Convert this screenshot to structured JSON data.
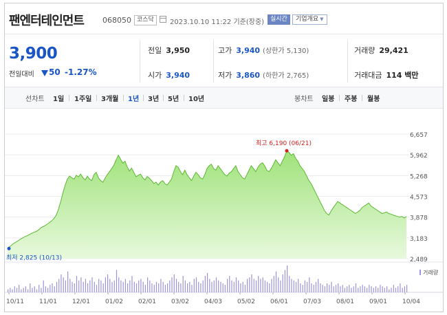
{
  "header": {
    "company_name": "팬엔터테인먼트",
    "stock_code": "068050",
    "market": "코스닥",
    "datetime": "2023.10.10 11:22",
    "status": "기준(장중)",
    "realtime_badge": "실시간",
    "company_info_button": "기업개요"
  },
  "quote": {
    "price": "3,900",
    "change_label": "전일대비",
    "change_value": "50",
    "change_percent": "-1.27%",
    "prev_close": {
      "label": "전일",
      "value": "3,950"
    },
    "open": {
      "label": "시가",
      "value": "3,940"
    },
    "high": {
      "label": "고가",
      "value": "3,940",
      "limit_label": "(상한가 5,130)"
    },
    "low": {
      "label": "저가",
      "value": "3,860",
      "limit_label": "(하한가 2,765)"
    },
    "volume": {
      "label": "거래량",
      "value": "29,421"
    },
    "trade_value": {
      "label": "거래대금",
      "value": "114 백만"
    }
  },
  "periods": {
    "line_chart_label": "선차트",
    "items": [
      "1일",
      "1주일",
      "3개월",
      "1년",
      "3년",
      "5년",
      "10년"
    ],
    "active": "1년",
    "candle_chart_label": "봉차트",
    "candle_items": [
      "일봉",
      "주봉",
      "월봉"
    ]
  },
  "colors": {
    "accent_blue": "#1a55c5",
    "annotation_red": "#d61f1f",
    "area_fill": "#9fe27a",
    "area_line": "#5cb933",
    "volume_bar": "#9b93d6"
  },
  "chart_data": {
    "type": "area",
    "y_ticks": [
      "6,657",
      "5,962",
      "5,268",
      "4,573",
      "3,878",
      "3,183",
      "2,489"
    ],
    "ylim": [
      2489,
      6657
    ],
    "x_tick_labels": [
      "10/11",
      "11/01",
      "12/01",
      "01/02",
      "02/01",
      "03/02",
      "04/03",
      "05/02",
      "06/01",
      "07/03",
      "08/01",
      "09/01",
      "10/04"
    ],
    "max_annotation": "최고 6,190 (06/21)",
    "min_annotation": "최저 2,825 (10/13)",
    "volume_legend": "거래량",
    "series": [
      {
        "values": [
          2825,
          2890,
          2950,
          3010,
          3050,
          3100,
          3150,
          3190,
          3230,
          3260,
          3300,
          3340,
          3370,
          3400,
          3450,
          3520,
          3560,
          3600,
          3650,
          3700,
          3760,
          3840,
          3950,
          4150,
          4400,
          4700,
          4950,
          5150,
          5250,
          5200,
          5150,
          5280,
          5230,
          5320,
          5200,
          5120,
          5250,
          5150,
          5100,
          5300,
          5380,
          5200,
          5100,
          5050,
          5180,
          5300,
          5400,
          5500,
          5620,
          5800,
          5950,
          5820,
          5680,
          5750,
          5560,
          5420,
          5520,
          5370,
          5230,
          5280,
          5320,
          5200,
          5120,
          5240,
          5180,
          5100,
          5000,
          5050,
          4950,
          5050,
          5100,
          5000,
          4950,
          5050,
          5150,
          5400,
          5600,
          5550,
          5400,
          5300,
          5450,
          5300,
          5200,
          5100,
          5250,
          5380,
          5300,
          5200,
          5150,
          5300,
          5500,
          5600,
          5650,
          5500,
          5450,
          5600,
          5500,
          5400,
          5300,
          5250,
          5350,
          5400,
          5500,
          5600,
          5400,
          5300,
          5200,
          5150,
          5300,
          5450,
          5600,
          5500,
          5400,
          5550,
          5650,
          5700,
          5600,
          5450,
          5400,
          5500,
          5650,
          5800,
          5700,
          5600,
          5750,
          5900,
          6100,
          6050,
          5950,
          6000,
          5850,
          5750,
          5600,
          5500,
          5400,
          5250,
          5100,
          5000,
          4850,
          4700,
          4550,
          4400,
          4250,
          4100,
          4000,
          3950,
          4080,
          4200,
          4300,
          4400,
          4350,
          4300,
          4250,
          4200,
          4150,
          4100,
          4050,
          4000,
          4050,
          4100,
          4200,
          4250,
          4300,
          4350,
          4250,
          4200,
          4150,
          4100,
          4050,
          4000,
          4020,
          4050,
          4000,
          3980,
          3950,
          3920,
          3900,
          3880,
          3900,
          3850,
          3900
        ]
      }
    ],
    "volume_values": [
      2,
      3,
      2,
      4,
      3,
      5,
      2,
      3,
      4,
      2,
      6,
      3,
      4,
      2,
      5,
      3,
      8,
      4,
      3,
      5,
      6,
      4,
      7,
      9,
      12,
      10,
      8,
      14,
      9,
      7,
      6,
      11,
      8,
      10,
      7,
      9,
      6,
      8,
      10,
      7,
      5,
      9,
      8,
      6,
      10,
      12,
      9,
      7,
      8,
      15,
      10,
      8,
      7,
      9,
      6,
      8,
      11,
      7,
      6,
      8,
      9,
      7,
      5,
      10,
      8,
      6,
      5,
      7,
      6,
      9,
      7,
      5,
      6,
      8,
      10,
      12,
      9,
      7,
      6,
      11,
      8,
      6,
      7,
      5,
      9,
      10,
      7,
      6,
      8,
      11,
      13,
      9,
      7,
      8,
      10,
      8,
      7,
      6,
      5,
      9,
      11,
      8,
      7,
      10,
      8,
      6,
      7,
      5,
      9,
      10,
      12,
      9,
      8,
      11,
      9,
      10,
      8,
      7,
      6,
      9,
      11,
      14,
      10,
      8,
      12,
      15,
      18,
      11,
      9,
      8,
      7,
      9,
      6,
      5,
      8,
      7,
      10,
      6,
      5,
      7,
      9,
      6,
      5,
      4,
      6,
      5,
      7,
      4,
      5,
      6,
      4,
      5,
      3,
      4,
      5,
      3,
      4,
      6,
      3,
      4,
      5,
      4,
      3,
      5,
      4,
      3,
      4,
      3,
      5,
      4,
      3,
      4,
      2,
      3,
      5,
      3,
      4,
      6,
      3,
      4,
      5
    ]
  }
}
